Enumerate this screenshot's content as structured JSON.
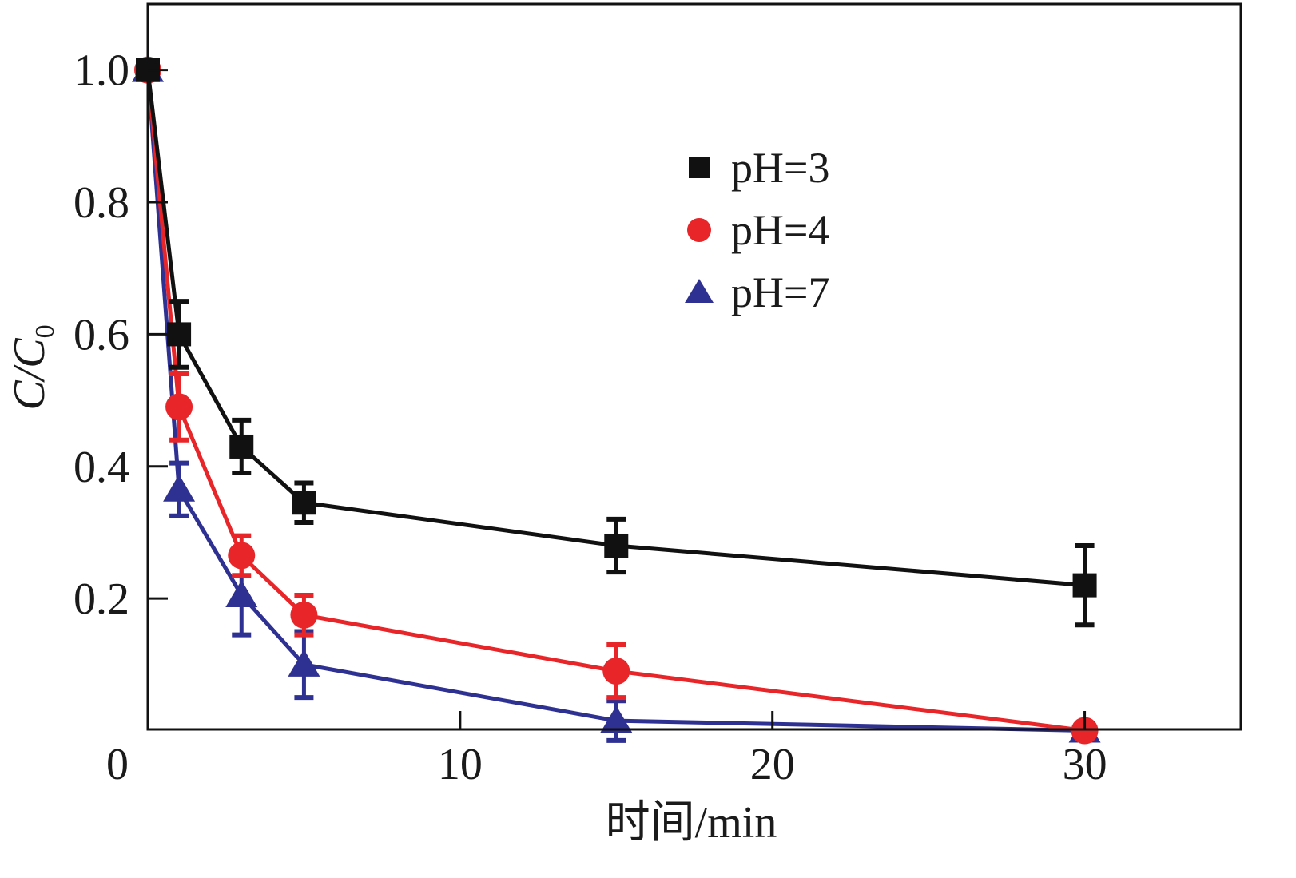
{
  "chart_data": {
    "type": "line",
    "title": "",
    "xlabel": "时间/min",
    "ylabel": "C/C",
    "ylabel_subscript": "0",
    "xlim": [
      0,
      35
    ],
    "ylim": [
      0,
      1.1
    ],
    "x_ticks": [
      "0",
      "10",
      "20",
      "30"
    ],
    "x_tick_values": [
      0,
      10,
      20,
      30
    ],
    "y_ticks": [
      "0.2",
      "0.4",
      "0.6",
      "0.8",
      "1.0"
    ],
    "y_tick_values": [
      0.2,
      0.4,
      0.6,
      0.8,
      1.0
    ],
    "grid": false,
    "legend_position": "top-center-right",
    "x": [
      0,
      1,
      3,
      5,
      15,
      30
    ],
    "series": [
      {
        "name": "pH=3",
        "color": "#111111",
        "marker": "square",
        "values": [
          1.0,
          0.6,
          0.43,
          0.345,
          0.28,
          0.22
        ],
        "errors": [
          0,
          0.05,
          0.04,
          0.03,
          0.04,
          0.06
        ]
      },
      {
        "name": "pH=4",
        "color": "#e8262a",
        "marker": "circle",
        "values": [
          1.0,
          0.49,
          0.265,
          0.175,
          0.09,
          0.0
        ],
        "errors": [
          0,
          0.05,
          0.03,
          0.03,
          0.04,
          0
        ]
      },
      {
        "name": "pH=7",
        "color": "#2e3192",
        "marker": "triangle",
        "values": [
          1.0,
          0.365,
          0.205,
          0.1,
          0.015,
          0.0
        ],
        "errors": [
          0,
          0.04,
          0.06,
          0.05,
          0.03,
          0
        ]
      }
    ]
  }
}
